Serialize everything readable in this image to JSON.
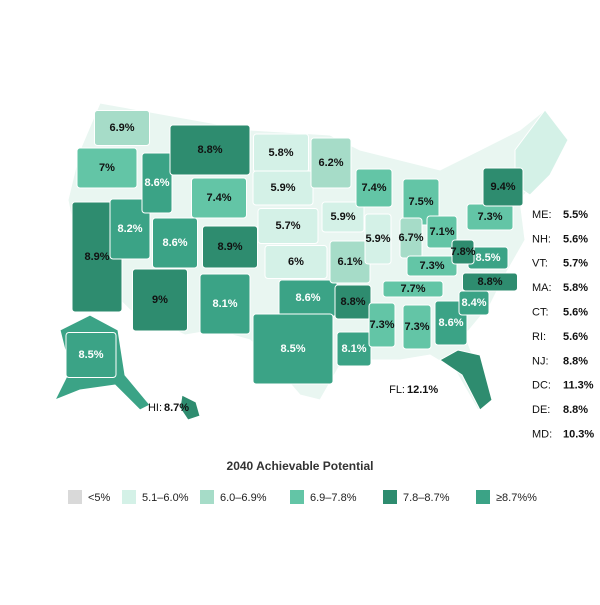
{
  "title": "2040 Achievable Potential",
  "legend": {
    "items": [
      {
        "label": "<5%",
        "color": "#d9d9d9"
      },
      {
        "label": "5.1–6.0%",
        "color": "#d4f1e7"
      },
      {
        "label": "6.0–6.9%",
        "color": "#a6dcc8"
      },
      {
        "label": "6.9–7.8%",
        "color": "#63c5a6"
      },
      {
        "label": "7.8–8.7%",
        "color": "#2e8c6f"
      },
      {
        "label": "≥8.7%%",
        "color": "#3ba386"
      }
    ]
  },
  "regions": [
    {
      "label": "6.9%",
      "color": "#a6dcc8"
    },
    {
      "label": "7%",
      "color": "#63c5a6"
    },
    {
      "label": "8.9%",
      "color": "#2e8c6f"
    },
    {
      "label": "8.2%",
      "color": "#3ba386"
    },
    {
      "label": "8.6%",
      "color": "#3ba386"
    },
    {
      "label": "8.8%",
      "color": "#2e8c6f"
    },
    {
      "label": "7.4%",
      "color": "#63c5a6"
    },
    {
      "label": "8.6%",
      "color": "#3ba386"
    },
    {
      "label": "8.9%",
      "color": "#2e8c6f"
    },
    {
      "label": "9%",
      "color": "#2e8c6f"
    },
    {
      "label": "8.1%",
      "color": "#3ba386"
    },
    {
      "label": "5.8%",
      "color": "#d4f1e7"
    },
    {
      "label": "5.9%",
      "color": "#d4f1e7"
    },
    {
      "label": "5.7%",
      "color": "#d4f1e7"
    },
    {
      "label": "6%",
      "color": "#d4f1e7"
    },
    {
      "label": "8.6%",
      "color": "#3ba386"
    },
    {
      "label": "8.5%",
      "color": "#3ba386"
    },
    {
      "label": "6.2%",
      "color": "#a6dcc8"
    },
    {
      "label": "5.9%",
      "color": "#d4f1e7"
    },
    {
      "label": "6.1%",
      "color": "#a6dcc8"
    },
    {
      "label": "8.8%",
      "color": "#2e8c6f"
    },
    {
      "label": "8.1%",
      "color": "#3ba386"
    },
    {
      "label": "7.4%",
      "color": "#63c5a6"
    },
    {
      "label": "5.9%",
      "color": "#d4f1e7"
    },
    {
      "label": "7.5%",
      "color": "#63c5a6"
    },
    {
      "label": "6.7%",
      "color": "#a6dcc8"
    },
    {
      "label": "7.1%",
      "color": "#63c5a6"
    },
    {
      "label": "7.3%",
      "color": "#63c5a6"
    },
    {
      "label": "7.7%",
      "color": "#63c5a6"
    },
    {
      "label": "7.3%",
      "color": "#63c5a6"
    },
    {
      "label": "7.3%",
      "color": "#63c5a6"
    },
    {
      "label": "8.6%",
      "color": "#3ba386"
    },
    {
      "label": "8.4%",
      "color": "#3ba386"
    },
    {
      "label": "8.8%",
      "color": "#2e8c6f"
    },
    {
      "label": "8.5%",
      "color": "#3ba386"
    },
    {
      "label": "7.8%",
      "color": "#2e8c6f"
    },
    {
      "label": "7.3%",
      "color": "#63c5a6"
    },
    {
      "label": "9.4%",
      "color": "#2e8c6f"
    },
    {
      "label": "8.5%",
      "color": "#3ba386"
    },
    {
      "label": "8.7%",
      "prefix": "HI:",
      "color": "#2e8c6f"
    },
    {
      "label": "12.1%",
      "prefix": "FL:",
      "color": "#2e8c6f"
    }
  ],
  "sidebar": [
    {
      "abbr": "ME:",
      "value": "5.5%"
    },
    {
      "abbr": "NH:",
      "value": "5.6%"
    },
    {
      "abbr": "VT:",
      "value": "5.7%"
    },
    {
      "abbr": "MA:",
      "value": "5.8%"
    },
    {
      "abbr": "CT:",
      "value": "5.6%"
    },
    {
      "abbr": "RI:",
      "value": "5.6%"
    },
    {
      "abbr": "NJ:",
      "value": "8.8%"
    },
    {
      "abbr": "DC:",
      "value": "11.3%"
    },
    {
      "abbr": "DE:",
      "value": "8.8%"
    },
    {
      "abbr": "MD:",
      "value": "10.3%"
    }
  ]
}
